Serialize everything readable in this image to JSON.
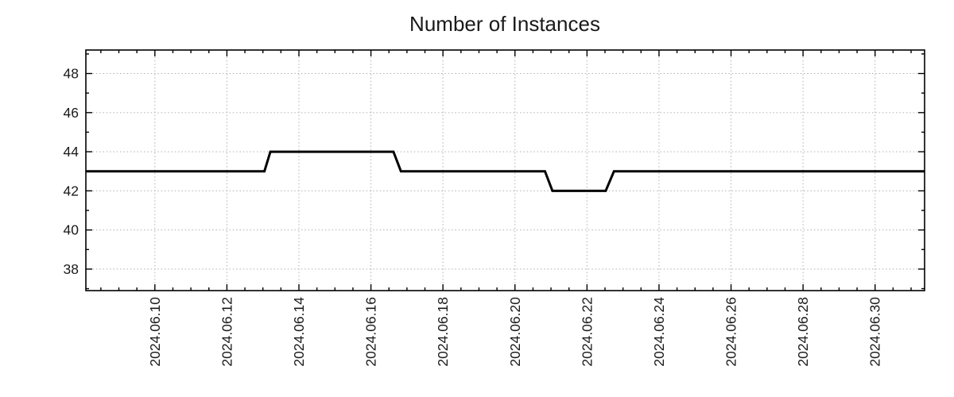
{
  "chart_data": {
    "type": "line",
    "title": "Number of Instances",
    "legend": false,
    "grid": "dotted lines at major ticks, both axes",
    "x_axis": {
      "kind": "datetime",
      "range": [
        "2024-06-08 02:00",
        "2024-07-01 09:00"
      ],
      "major_tick_interval_days": 2,
      "minor_tick_interval_days": 0.5,
      "major_tick_labels": [
        "2024.06.10",
        "2024.06.12",
        "2024.06.14",
        "2024.06.16",
        "2024.06.18",
        "2024.06.20",
        "2024.06.22",
        "2024.06.24",
        "2024.06.26",
        "2024.06.28",
        "2024.06.30"
      ],
      "label_rotation_deg": -90
    },
    "y_axis": {
      "range": [
        36.9,
        49.2
      ],
      "major_ticks": [
        38,
        40,
        42,
        44,
        46,
        48
      ],
      "minor_tick_interval": 1
    },
    "series": [
      {
        "name": "instances",
        "color": "#000000",
        "points": [
          {
            "x": "2024-06-08 02:00",
            "y": 43
          },
          {
            "x": "2024-06-13 01:00",
            "y": 43
          },
          {
            "x": "2024-06-13 05:00",
            "y": 44
          },
          {
            "x": "2024-06-16 15:00",
            "y": 44
          },
          {
            "x": "2024-06-16 20:00",
            "y": 43
          },
          {
            "x": "2024-06-20 20:00",
            "y": 43
          },
          {
            "x": "2024-06-21 01:00",
            "y": 42
          },
          {
            "x": "2024-06-22 12:30",
            "y": 42
          },
          {
            "x": "2024-06-22 18:00",
            "y": 43
          },
          {
            "x": "2024-07-01 09:00",
            "y": 43
          }
        ]
      }
    ]
  },
  "colors": {
    "line": "#000000",
    "grid": "#b0b0b0",
    "axis_border": "#000000",
    "text": "#1a1a1a",
    "background": "#ffffff"
  }
}
